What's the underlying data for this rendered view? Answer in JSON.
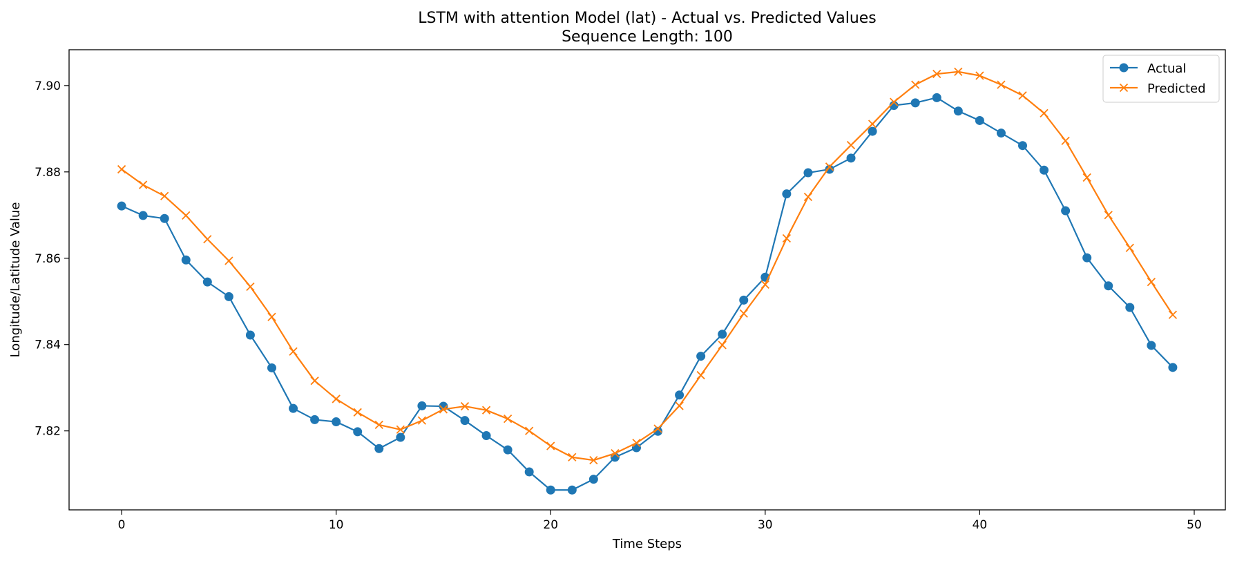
{
  "chart_data": {
    "type": "line",
    "title": "LSTM with attention Model (lat) - Actual vs. Predicted Values",
    "subtitle": "Sequence Length: 100",
    "xlabel": "Time Steps",
    "ylabel": "Longitude/Latitude Value",
    "xlim": [
      -2.45,
      51.45
    ],
    "ylim": [
      7.8017,
      7.9083
    ],
    "xticks": [
      0,
      10,
      20,
      30,
      40,
      50
    ],
    "yticks": [
      7.82,
      7.84,
      7.86,
      7.88,
      7.9
    ],
    "ytick_labels": [
      "7.82",
      "7.84",
      "7.86",
      "7.88",
      "7.90"
    ],
    "grid": false,
    "legend_position": "top-right",
    "x": [
      0,
      1,
      2,
      3,
      4,
      5,
      6,
      7,
      8,
      9,
      10,
      11,
      12,
      13,
      14,
      15,
      16,
      17,
      18,
      19,
      20,
      21,
      22,
      23,
      24,
      25,
      26,
      27,
      28,
      29,
      30,
      31,
      32,
      33,
      34,
      35,
      36,
      37,
      38,
      39,
      40,
      41,
      42,
      43,
      44,
      45,
      46,
      47,
      48,
      49
    ],
    "series": [
      {
        "name": "Actual",
        "color": "#1f77b4",
        "marker": "circle",
        "values": [
          7.8721,
          7.8699,
          7.8692,
          7.8596,
          7.8545,
          7.8511,
          7.8422,
          7.8346,
          7.8252,
          7.8226,
          7.8221,
          7.8198,
          7.8159,
          7.8185,
          7.8258,
          7.8257,
          7.8224,
          7.8189,
          7.8156,
          7.8105,
          7.8063,
          7.8063,
          7.8088,
          7.8139,
          7.8161,
          7.8199,
          7.8283,
          7.8373,
          7.8424,
          7.8503,
          7.8556,
          7.8749,
          7.8798,
          7.8806,
          7.8832,
          7.8894,
          7.8954,
          7.896,
          7.8972,
          7.8941,
          7.8919,
          7.889,
          7.8861,
          7.8804,
          7.871,
          7.8601,
          7.8536,
          7.8486,
          7.8398,
          7.8347
        ]
      },
      {
        "name": "Predicted",
        "color": "#ff7f0e",
        "marker": "x",
        "values": [
          7.8806,
          7.877,
          7.8744,
          7.8699,
          7.8644,
          7.8594,
          7.8534,
          7.8464,
          7.8384,
          7.8316,
          7.8274,
          7.8243,
          7.8214,
          7.8203,
          7.8224,
          7.825,
          7.8257,
          7.8248,
          7.8228,
          7.82,
          7.8165,
          7.8139,
          7.8132,
          7.8148,
          7.8172,
          7.8205,
          7.8258,
          7.8329,
          7.8399,
          7.8472,
          7.8539,
          7.8646,
          7.8742,
          7.8812,
          7.8862,
          7.8911,
          7.8962,
          7.9002,
          7.9027,
          7.9032,
          7.9023,
          7.9002,
          7.8977,
          7.8936,
          7.8872,
          7.8787,
          7.87,
          7.8624,
          7.8545,
          7.8469
        ]
      }
    ]
  }
}
